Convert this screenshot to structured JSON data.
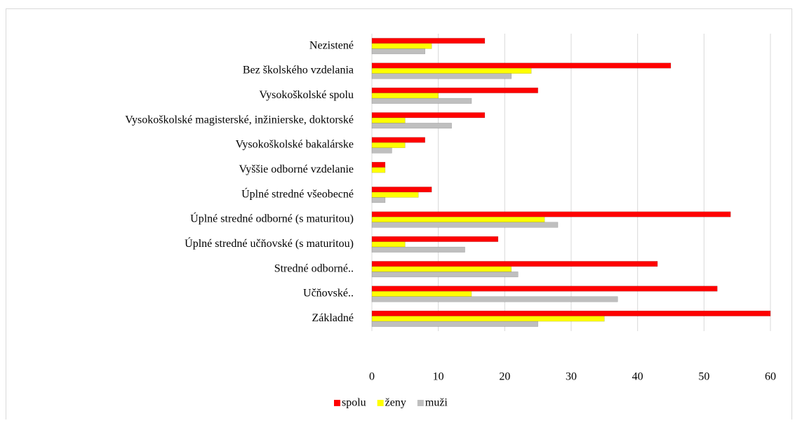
{
  "chart_data": {
    "type": "bar",
    "orientation": "horizontal",
    "categories": [
      "Nezistené",
      "Bez školského vzdelania",
      "Vysokoškolské spolu",
      "Vysokoškolské magisterské, inžinierske, doktorské",
      "Vysokoškolské bakalárske",
      "Vyššie odborné vzdelanie",
      "Úplné stredné všeobecné",
      "Úplné stredné odborné (s maturitou)",
      "Úplné stredné učňovské (s maturitou)",
      "Stredné odborné..",
      "Učňovské..",
      "Základné"
    ],
    "series": [
      {
        "name": "spolu",
        "color": "#ff0000",
        "values": [
          17,
          45,
          25,
          17,
          8,
          2,
          9,
          54,
          19,
          43,
          52,
          60
        ]
      },
      {
        "name": "ženy",
        "color": "#ffff00",
        "values": [
          9,
          24,
          10,
          5,
          5,
          2,
          7,
          26,
          5,
          21,
          15,
          35
        ]
      },
      {
        "name": "muži",
        "color": "#bfbfbf",
        "values": [
          8,
          21,
          15,
          12,
          3,
          0,
          2,
          28,
          14,
          22,
          37,
          25
        ]
      }
    ],
    "xlim": [
      0,
      60
    ],
    "xticks": [
      0,
      10,
      20,
      30,
      40,
      50,
      60
    ],
    "grid": true,
    "legend": "bottom"
  }
}
